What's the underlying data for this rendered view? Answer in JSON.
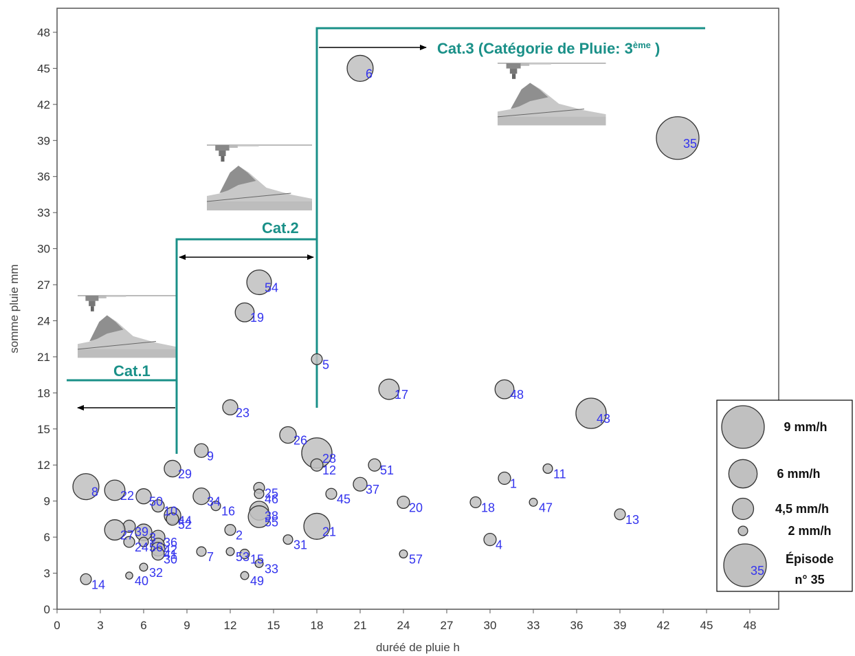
{
  "chart_data": {
    "type": "bubble",
    "x_label": "duréé de pluie h",
    "y_label": "somme pluie mm",
    "xlim": [
      0,
      50
    ],
    "ylim": [
      0,
      50
    ],
    "xticks": [
      0,
      3,
      6,
      9,
      12,
      15,
      18,
      21,
      24,
      27,
      30,
      33,
      36,
      39,
      42,
      45,
      48
    ],
    "yticks": [
      0,
      3,
      6,
      9,
      12,
      15,
      18,
      21,
      24,
      27,
      30,
      33,
      36,
      39,
      42,
      45,
      48
    ],
    "grid": false,
    "series": [
      {
        "color": "#c0c0c0",
        "x": [
          21,
          43,
          14,
          13,
          18,
          23,
          31,
          37,
          12,
          16,
          18,
          18,
          10,
          8,
          22,
          34,
          31,
          2,
          4,
          6,
          21,
          19,
          14,
          14,
          10,
          24,
          29,
          33,
          39,
          11,
          14,
          14,
          8,
          7,
          5,
          8,
          6,
          7,
          4,
          18,
          12,
          30,
          5,
          7,
          7,
          6,
          7,
          12,
          10,
          13,
          16,
          24,
          14,
          6,
          5,
          13,
          2
        ],
        "values": [
          45,
          39.2,
          27.2,
          24.7,
          20.8,
          18.3,
          18.3,
          16.3,
          16.8,
          14.5,
          13,
          12,
          13.2,
          11.7,
          12,
          11.7,
          10.9,
          10.2,
          9.9,
          9.4,
          10.4,
          9.6,
          10.1,
          9.6,
          9.4,
          8.9,
          8.9,
          8.9,
          7.9,
          8.6,
          8.2,
          7.7,
          7.8,
          8.6,
          6.9,
          7.5,
          6.4,
          6,
          6.6,
          6.9,
          6.6,
          5.8,
          5.6,
          5.4,
          5,
          5.6,
          4.6,
          4.8,
          4.8,
          4.6,
          5.8,
          4.6,
          3.8,
          3.5,
          2.8,
          2.8,
          2.5
        ],
        "sizes": [
          5.5,
          9,
          5.2,
          4,
          2.3,
          4.3,
          4,
          6.4,
          3.2,
          3.5,
          6.4,
          2.6,
          2.9,
          3.5,
          2.6,
          2,
          2.6,
          5.5,
          4.3,
          3.2,
          2.9,
          2.3,
          2.3,
          2,
          3.5,
          2.6,
          2.3,
          1.7,
          2.3,
          2,
          4,
          4.6,
          3.5,
          2.6,
          2.6,
          2.6,
          3.5,
          2.9,
          4.3,
          5.5,
          2.3,
          2.6,
          2.3,
          2.6,
          2.9,
          2,
          2.6,
          1.7,
          2,
          2,
          2,
          1.7,
          1.7,
          1.7,
          1.5,
          1.7,
          2.3
        ],
        "labels": [
          "6",
          "35",
          "54",
          "19",
          "5",
          "17",
          "48",
          "43",
          "23",
          "26",
          "28",
          "12",
          "9",
          "29",
          "51",
          "11",
          "1",
          "8",
          "22",
          "50",
          "37",
          "45",
          "25",
          "46",
          "34",
          "20",
          "18",
          "47",
          "13",
          "16",
          "38",
          "55",
          "44",
          "10",
          "39",
          "52",
          "3",
          "36",
          "27",
          "21",
          "2",
          "4",
          "24",
          "42",
          "41",
          "56",
          "30",
          "53",
          "7",
          "15",
          "31",
          "57",
          "33",
          "32",
          "40",
          "49",
          "14"
        ]
      }
    ],
    "size_legend": [
      {
        "value": 9,
        "label": "9 mm/h"
      },
      {
        "value": 6,
        "label": "6 mm/h"
      },
      {
        "value": 4.5,
        "label": "4,5 mm/h"
      },
      {
        "value": 2,
        "label": "2 mm/h"
      }
    ],
    "legend_example": {
      "size": 9,
      "id": "35",
      "lines": [
        "Épisode",
        "n° 35"
      ]
    },
    "annotations": {
      "cat1": "Cat.1",
      "cat2": "Cat.2",
      "cat3": {
        "text": "Cat.3 (Catégorie de Pluie: 3",
        "sup": "ème",
        "end": " )"
      }
    }
  }
}
